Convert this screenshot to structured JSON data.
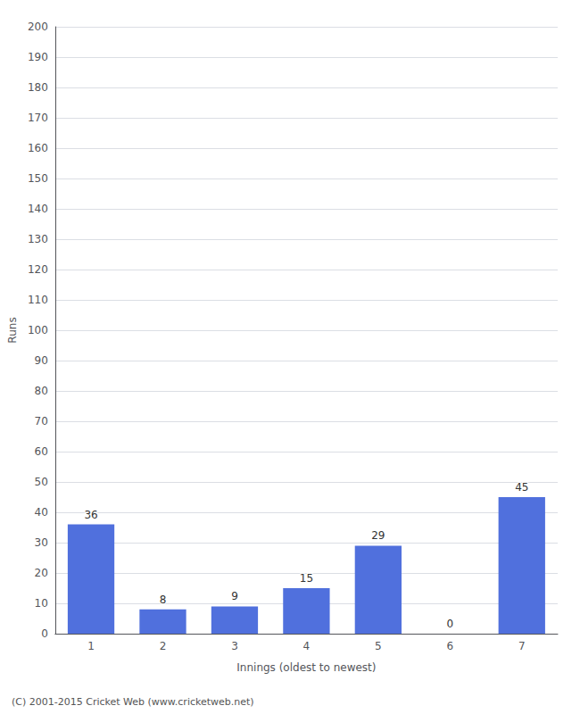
{
  "chart_data": {
    "type": "bar",
    "categories": [
      "1",
      "2",
      "3",
      "4",
      "5",
      "6",
      "7"
    ],
    "values": [
      36,
      8,
      9,
      15,
      29,
      0,
      45
    ],
    "xlabel": "Innings (oldest to newest)",
    "ylabel": "Runs",
    "ylim": [
      0,
      200
    ],
    "yticks": [
      0,
      10,
      20,
      30,
      40,
      50,
      60,
      70,
      80,
      90,
      100,
      110,
      120,
      130,
      140,
      150,
      160,
      170,
      180,
      190,
      200
    ],
    "grid": true,
    "data_labels": true,
    "footer": "(C) 2001-2015 Cricket Web (www.cricketweb.net)"
  }
}
